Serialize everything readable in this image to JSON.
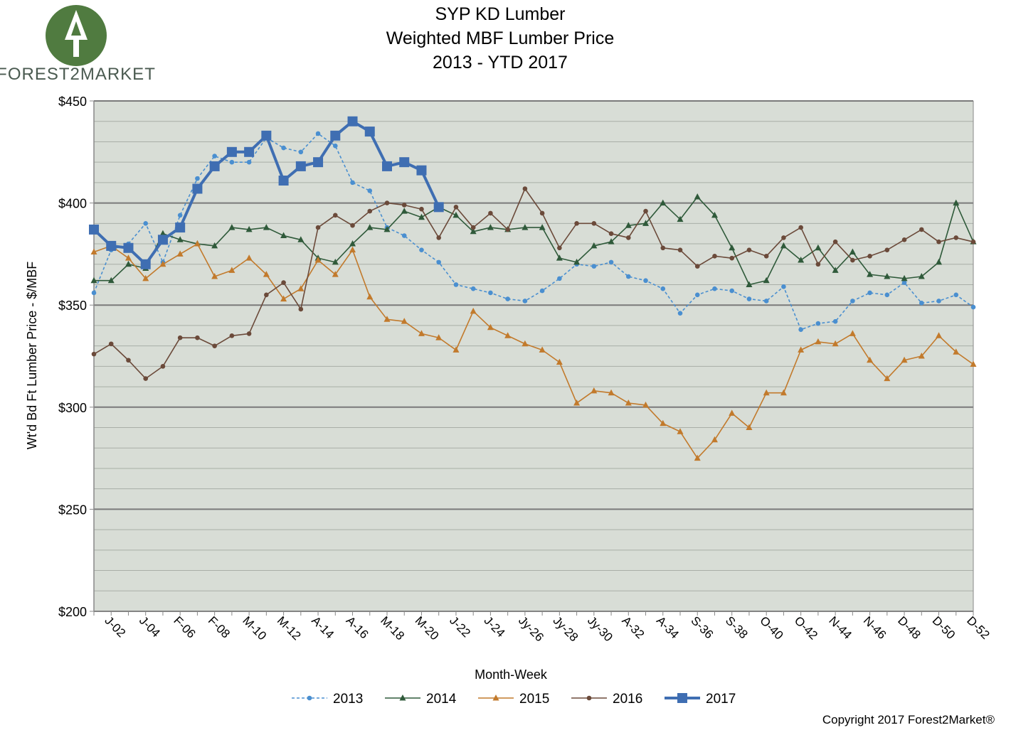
{
  "logo": "FOREST2MARKET",
  "copyright": "Copyright 2017 Forest2Market®",
  "chart_data": {
    "type": "line",
    "title": [
      "SYP KD Lumber",
      "Weighted MBF Lumber Price",
      "2013 - YTD 2017"
    ],
    "x_label": "Month-Week",
    "y_label": "Wt'd Bd Ft Lumber  Price - $/MBF",
    "categories": [
      null,
      "J-02",
      null,
      "J-04",
      null,
      "F-06",
      null,
      "F-08",
      null,
      "M-10",
      null,
      "M-12",
      null,
      "A-14",
      null,
      "A-16",
      null,
      "M-18",
      null,
      "M-20",
      null,
      "J-22",
      null,
      "J-24",
      null,
      "Jy-26",
      null,
      "Jy-28",
      null,
      "Jy-30",
      null,
      "A-32",
      null,
      "A-34",
      null,
      "S-36",
      null,
      "S-38",
      null,
      "O-40",
      null,
      "O-42",
      null,
      "N-44",
      null,
      "N-46",
      null,
      "D-48",
      null,
      "D-50",
      null,
      "D-52"
    ],
    "ylim": [
      200,
      450
    ],
    "yticks": [
      {
        "value": 200,
        "label": "$200"
      },
      {
        "value": 250,
        "label": "$250"
      },
      {
        "value": 300,
        "label": "$300"
      },
      {
        "value": 350,
        "label": "$350"
      },
      {
        "value": 400,
        "label": "$400"
      },
      {
        "value": 450,
        "label": "$450"
      }
    ],
    "minor_yticks": [
      210,
      220,
      230,
      240,
      260,
      270,
      280,
      290,
      310,
      320,
      330,
      340,
      360,
      370,
      380,
      390,
      410,
      420,
      430,
      440
    ],
    "grid": true,
    "legend": "bottom",
    "series": [
      {
        "name": "2013",
        "color": "#4a8fd0",
        "marker": "circle",
        "dashed": true,
        "values": [
          356,
          377,
          380,
          390,
          371,
          394,
          412,
          423,
          420,
          420,
          432,
          427,
          425,
          434,
          428,
          410,
          406,
          388,
          384,
          377,
          371,
          360,
          358,
          356,
          353,
          352,
          357,
          363,
          370,
          369,
          371,
          364,
          362,
          358,
          346,
          355,
          358,
          357,
          353,
          352,
          359,
          338,
          341,
          342,
          352,
          356,
          355,
          361,
          351,
          352,
          355,
          349
        ]
      },
      {
        "name": "2014",
        "color": "#2f5a3a",
        "marker": "triangle",
        "dashed": false,
        "values": [
          362,
          362,
          370,
          368,
          385,
          382,
          380,
          379,
          388,
          387,
          388,
          384,
          382,
          373,
          371,
          380,
          388,
          387,
          396,
          393,
          398,
          394,
          386,
          388,
          387,
          388,
          388,
          373,
          371,
          379,
          381,
          389,
          390,
          400,
          392,
          403,
          394,
          378,
          360,
          362,
          379,
          372,
          378,
          367,
          376,
          365,
          364,
          363,
          364,
          371,
          400,
          381
        ]
      },
      {
        "name": "2015",
        "color": "#c27a2c",
        "marker": "triangle",
        "dashed": false,
        "values": [
          376,
          379,
          373,
          363,
          370,
          375,
          380,
          364,
          367,
          373,
          365,
          353,
          358,
          372,
          365,
          377,
          354,
          343,
          342,
          336,
          334,
          328,
          347,
          339,
          335,
          331,
          328,
          322,
          302,
          308,
          307,
          302,
          301,
          292,
          288,
          275,
          284,
          297,
          290,
          307,
          307,
          328,
          332,
          331,
          336,
          323,
          314,
          323,
          325,
          335,
          327,
          321
        ]
      },
      {
        "name": "2016",
        "color": "#6b4a3a",
        "marker": "circle",
        "dashed": false,
        "values": [
          326,
          331,
          323,
          314,
          320,
          334,
          334,
          330,
          335,
          336,
          355,
          361,
          348,
          388,
          394,
          389,
          396,
          400,
          399,
          397,
          383,
          398,
          388,
          395,
          387,
          407,
          395,
          378,
          390,
          390,
          385,
          383,
          396,
          378,
          377,
          369,
          374,
          373,
          377,
          374,
          383,
          388,
          370,
          381,
          372,
          374,
          377,
          382,
          387,
          381,
          383,
          381
        ]
      },
      {
        "name": "2017",
        "color": "#3f6eb2",
        "marker": "square",
        "dashed": false,
        "values": [
          387,
          379,
          378,
          370,
          382,
          388,
          407,
          418,
          425,
          425,
          433,
          411,
          418,
          420,
          433,
          440,
          435,
          418,
          420,
          416,
          398,
          null,
          null,
          null,
          null,
          null,
          null,
          null,
          null,
          null,
          null,
          null,
          null,
          null,
          null,
          null,
          null,
          null,
          null,
          null,
          null,
          null,
          null,
          null,
          null,
          null,
          null,
          null,
          null,
          null,
          null,
          null
        ]
      }
    ]
  }
}
